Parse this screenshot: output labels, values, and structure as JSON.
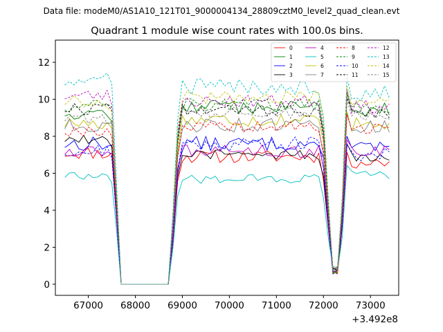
{
  "suptitle": "Data file: modeM0/AS1A10_121T01_9000004134_28809cztM0_level2_quad_clean.evt",
  "chart_data": {
    "type": "line",
    "title": "Quadrant 1 module wise count rates with 100.0s bins.",
    "xlabel": "",
    "ylabel": "",
    "x_offset_label": "+3.492e8",
    "xlim": [
      66300,
      73600
    ],
    "ylim": [
      -0.6,
      13.2
    ],
    "xticks": [
      67000,
      68000,
      69000,
      70000,
      71000,
      72000,
      73000
    ],
    "xtick_labels": [
      "67000",
      "68000",
      "69000",
      "70000",
      "71000",
      "72000",
      "73000"
    ],
    "yticks": [
      0,
      2,
      4,
      6,
      8,
      10,
      12
    ],
    "ytick_labels": [
      "0",
      "2",
      "4",
      "6",
      "8",
      "10",
      "12"
    ],
    "grid": false,
    "legend_position": "top-right",
    "legend_columns": 4,
    "bin_size_s": 100,
    "x_start": 66500,
    "x_end": 73400,
    "gap": [
      67700,
      68700
    ],
    "dip_center": 72250,
    "series": [
      {
        "name": "0",
        "color": "#ff0000",
        "dash": "solid",
        "level_before": 7.1,
        "level_after": 6.9,
        "level_late": 6.6,
        "noise": 0.35,
        "seed": 11
      },
      {
        "name": "1",
        "color": "#008000",
        "dash": "solid",
        "level_before": 9.3,
        "level_after": 9.6,
        "level_late": 9.5,
        "noise": 0.4,
        "seed": 12
      },
      {
        "name": "2",
        "color": "#0000ff",
        "dash": "solid",
        "level_before": 7.6,
        "level_after": 7.6,
        "level_late": 7.4,
        "noise": 0.4,
        "seed": 13
      },
      {
        "name": "3",
        "color": "#000000",
        "dash": "solid",
        "level_before": 7.9,
        "level_after": 7.0,
        "level_late": 7.0,
        "noise": 0.35,
        "seed": 14
      },
      {
        "name": "4",
        "color": "#c000c0",
        "dash": "solid",
        "level_before": 7.2,
        "level_after": 7.2,
        "level_late": 7.2,
        "noise": 0.35,
        "seed": 15
      },
      {
        "name": "5",
        "color": "#00bfbf",
        "dash": "solid",
        "level_before": 5.9,
        "level_after": 5.7,
        "level_late": 5.9,
        "noise": 0.25,
        "seed": 16
      },
      {
        "name": "6",
        "color": "#bfbf00",
        "dash": "solid",
        "level_before": 8.7,
        "level_after": 8.9,
        "level_late": 8.6,
        "noise": 0.4,
        "seed": 17
      },
      {
        "name": "7",
        "color": "#808080",
        "dash": "solid",
        "level_before": 8.6,
        "level_after": 8.6,
        "level_late": 8.5,
        "noise": 0.4,
        "seed": 18
      },
      {
        "name": "8",
        "color": "#ff0000",
        "dash": "dashed",
        "level_before": 8.3,
        "level_after": 8.5,
        "level_late": 8.4,
        "noise": 0.3,
        "seed": 19
      },
      {
        "name": "9",
        "color": "#008000",
        "dash": "dashed",
        "level_before": 9.6,
        "level_after": 9.7,
        "level_late": 9.5,
        "noise": 0.35,
        "seed": 20
      },
      {
        "name": "10",
        "color": "#0000ff",
        "dash": "dashed",
        "level_before": 7.2,
        "level_after": 7.6,
        "level_late": 7.0,
        "noise": 0.4,
        "seed": 21
      },
      {
        "name": "11",
        "color": "#000000",
        "dash": "dashed",
        "level_before": 9.5,
        "level_after": 9.4,
        "level_late": 9.2,
        "noise": 0.35,
        "seed": 22
      },
      {
        "name": "12",
        "color": "#c000c0",
        "dash": "dashed",
        "level_before": 10.2,
        "level_after": 9.9,
        "level_late": 9.6,
        "noise": 0.35,
        "seed": 23
      },
      {
        "name": "13",
        "color": "#00bfbf",
        "dash": "dashed",
        "level_before": 11.0,
        "level_after": 10.7,
        "level_late": 10.3,
        "noise": 0.45,
        "seed": 24
      },
      {
        "name": "14",
        "color": "#bfbf00",
        "dash": "dashed",
        "level_before": 9.9,
        "level_after": 10.1,
        "level_late": 9.8,
        "noise": 0.35,
        "seed": 25
      },
      {
        "name": "15",
        "color": "#808080",
        "dash": "dashed",
        "level_before": 9.0,
        "level_after": 9.3,
        "level_late": 9.1,
        "noise": 0.35,
        "seed": 26
      }
    ]
  }
}
